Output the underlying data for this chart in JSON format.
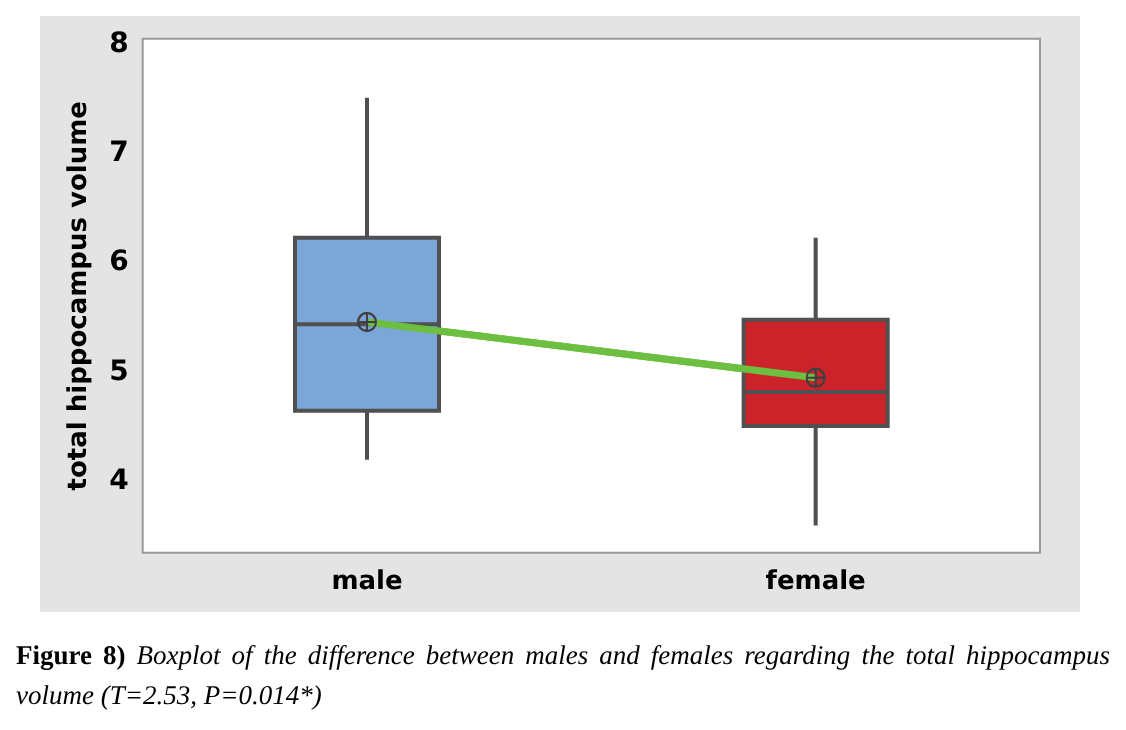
{
  "chart_data": {
    "type": "box",
    "ylabel": "total hippocampus volume",
    "categories": [
      "male",
      "female"
    ],
    "colors": [
      "#7ba6d8",
      "#cc2229"
    ],
    "boxes": [
      {
        "low": 4.2,
        "q1": 4.65,
        "median": 5.44,
        "q3": 6.23,
        "high": 7.51,
        "mean": 5.46
      },
      {
        "low": 3.6,
        "q1": 4.51,
        "median": 4.82,
        "q3": 5.48,
        "high": 6.23,
        "mean": 4.95
      }
    ],
    "series": [
      {
        "type": "line",
        "color": "#6cbf40",
        "values": [
          5.46,
          4.95
        ]
      }
    ],
    "ylim": [
      3.35,
      8.05
    ],
    "yticks": [
      4,
      5,
      6,
      7,
      8
    ],
    "grid": false,
    "legend": false,
    "annotations": [
      "Figure 8)",
      "Boxplot of the difference between males and females regarding the total hippocampus volume (T=2.53, P=0.014*)"
    ]
  }
}
